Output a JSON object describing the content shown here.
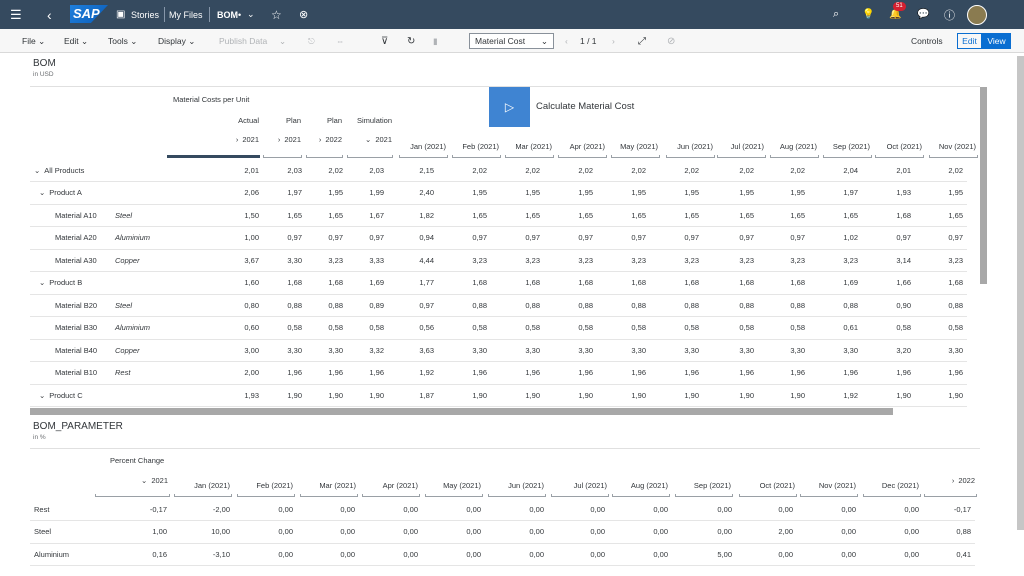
{
  "shell": {
    "back": "‹",
    "stories": "Stories",
    "myfiles": "My Files",
    "file": "BOM",
    "dirty": "•",
    "notif_count": "51"
  },
  "toolbar": {
    "file": "File",
    "edit": "Edit",
    "tools": "Tools",
    "display": "Display",
    "publish": "Publish Data",
    "dropdown_value": "Material Cost",
    "page": "1 / 1",
    "controls": "Controls",
    "edit_btn": "Edit",
    "view_btn": "View"
  },
  "bom": {
    "title": "BOM",
    "unit": "in USD",
    "measure": "Material Costs per Unit",
    "action": "Calculate Material Cost",
    "versions": [
      "Actual",
      "Plan",
      "Plan",
      "Simulation"
    ],
    "years": [
      "2021",
      "2021",
      "2022",
      "2021"
    ],
    "months": [
      "Jan (2021)",
      "Feb (2021)",
      "Mar (2021)",
      "Apr (2021)",
      "May (2021)",
      "Jun (2021)",
      "Jul (2021)",
      "Aug (2021)",
      "Sep (2021)",
      "Oct (2021)",
      "Nov (2021)"
    ],
    "rows": [
      {
        "label": "All Products",
        "mat": "",
        "vals": [
          "2,01",
          "2,03",
          "2,02",
          "2,03",
          "2,15",
          "2,02",
          "2,02",
          "2,02",
          "2,02",
          "2,02",
          "2,02",
          "2,02",
          "2,04",
          "2,01",
          "2,02"
        ]
      },
      {
        "label": "Product A",
        "mat": "",
        "vals": [
          "2,06",
          "1,97",
          "1,95",
          "1,99",
          "2,40",
          "1,95",
          "1,95",
          "1,95",
          "1,95",
          "1,95",
          "1,95",
          "1,95",
          "1,97",
          "1,93",
          "1,95"
        ]
      },
      {
        "label": "Material A10",
        "mat": "Steel",
        "vals": [
          "1,50",
          "1,65",
          "1,65",
          "1,67",
          "1,82",
          "1,65",
          "1,65",
          "1,65",
          "1,65",
          "1,65",
          "1,65",
          "1,65",
          "1,65",
          "1,68",
          "1,65"
        ]
      },
      {
        "label": "Material A20",
        "mat": "Aluminium",
        "vals": [
          "1,00",
          "0,97",
          "0,97",
          "0,97",
          "0,94",
          "0,97",
          "0,97",
          "0,97",
          "0,97",
          "0,97",
          "0,97",
          "0,97",
          "1,02",
          "0,97",
          "0,97"
        ]
      },
      {
        "label": "Material A30",
        "mat": "Copper",
        "vals": [
          "3,67",
          "3,30",
          "3,23",
          "3,33",
          "4,44",
          "3,23",
          "3,23",
          "3,23",
          "3,23",
          "3,23",
          "3,23",
          "3,23",
          "3,23",
          "3,14",
          "3,23"
        ]
      },
      {
        "label": "Product B",
        "mat": "",
        "vals": [
          "1,60",
          "1,68",
          "1,68",
          "1,69",
          "1,77",
          "1,68",
          "1,68",
          "1,68",
          "1,68",
          "1,68",
          "1,68",
          "1,68",
          "1,69",
          "1,66",
          "1,68"
        ]
      },
      {
        "label": "Material B20",
        "mat": "Steel",
        "vals": [
          "0,80",
          "0,88",
          "0,88",
          "0,89",
          "0,97",
          "0,88",
          "0,88",
          "0,88",
          "0,88",
          "0,88",
          "0,88",
          "0,88",
          "0,88",
          "0,90",
          "0,88"
        ]
      },
      {
        "label": "Material B30",
        "mat": "Aluminium",
        "vals": [
          "0,60",
          "0,58",
          "0,58",
          "0,58",
          "0,56",
          "0,58",
          "0,58",
          "0,58",
          "0,58",
          "0,58",
          "0,58",
          "0,58",
          "0,61",
          "0,58",
          "0,58"
        ]
      },
      {
        "label": "Material B40",
        "mat": "Copper",
        "vals": [
          "3,00",
          "3,30",
          "3,30",
          "3,32",
          "3,63",
          "3,30",
          "3,30",
          "3,30",
          "3,30",
          "3,30",
          "3,30",
          "3,30",
          "3,30",
          "3,20",
          "3,30"
        ]
      },
      {
        "label": "Material B10",
        "mat": "Rest",
        "vals": [
          "2,00",
          "1,96",
          "1,96",
          "1,96",
          "1,92",
          "1,96",
          "1,96",
          "1,96",
          "1,96",
          "1,96",
          "1,96",
          "1,96",
          "1,96",
          "1,96",
          "1,96"
        ]
      },
      {
        "label": "Product C",
        "mat": "",
        "vals": [
          "1,93",
          "1,90",
          "1,90",
          "1,90",
          "1,87",
          "1,90",
          "1,90",
          "1,90",
          "1,90",
          "1,90",
          "1,90",
          "1,90",
          "1,92",
          "1,90",
          "1,90"
        ]
      }
    ]
  },
  "param": {
    "title": "BOM_PARAMETER",
    "unit": "in %",
    "measure": "Percent Change",
    "year": "2021",
    "next_year": "2022",
    "months": [
      "Jan (2021)",
      "Feb (2021)",
      "Mar (2021)",
      "Apr (2021)",
      "May (2021)",
      "Jun (2021)",
      "Jul (2021)",
      "Aug (2021)",
      "Sep (2021)",
      "Oct (2021)",
      "Nov (2021)",
      "Dec (2021)"
    ],
    "rows": [
      {
        "label": "Rest",
        "vals": [
          "-0,17",
          "-2,00",
          "0,00",
          "0,00",
          "0,00",
          "0,00",
          "0,00",
          "0,00",
          "0,00",
          "0,00",
          "0,00",
          "0,00",
          "0,00",
          "-0,17"
        ]
      },
      {
        "label": "Steel",
        "vals": [
          "1,00",
          "10,00",
          "0,00",
          "0,00",
          "0,00",
          "0,00",
          "0,00",
          "0,00",
          "0,00",
          "0,00",
          "2,00",
          "0,00",
          "0,00",
          "0,88"
        ]
      },
      {
        "label": "Aluminium",
        "vals": [
          "0,16",
          "-3,10",
          "0,00",
          "0,00",
          "0,00",
          "0,00",
          "0,00",
          "0,00",
          "0,00",
          "5,00",
          "0,00",
          "0,00",
          "0,00",
          "0,41"
        ]
      }
    ]
  }
}
